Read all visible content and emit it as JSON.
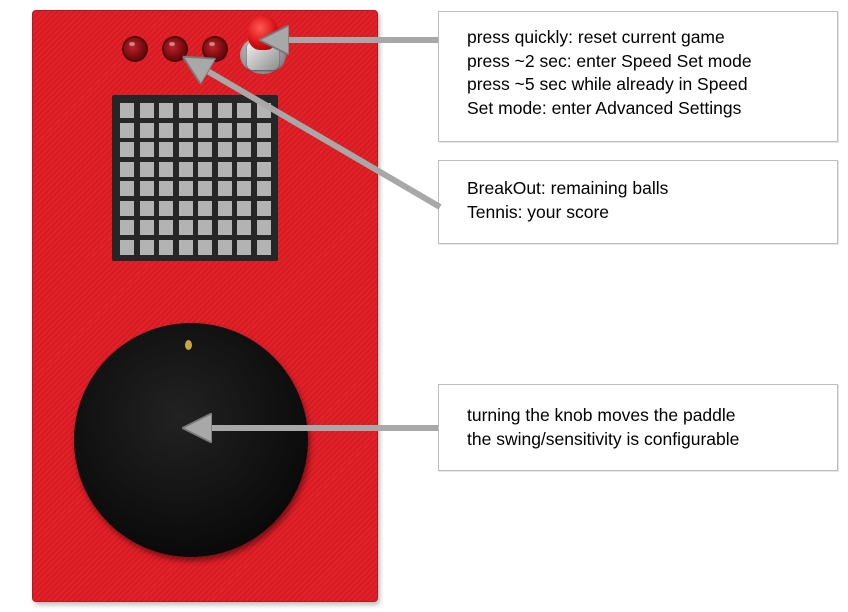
{
  "callouts": {
    "reset_button": {
      "lines": [
        "press quickly: reset current game",
        "press ~2 sec: enter Speed Set mode",
        "press ~5 sec while already in Speed",
        "Set mode: enter Advanced Settings"
      ]
    },
    "leds": {
      "lines": [
        "BreakOut: remaining balls",
        "Tennis: your score"
      ]
    },
    "knob": {
      "lines": [
        "turning the knob moves the paddle",
        "the swing/sensitivity is configurable"
      ]
    }
  },
  "device": {
    "body_color": "#e01a23",
    "led_count": 3,
    "matrix_rows": 8,
    "matrix_cols": 8,
    "arrow_color": "#a8a8a8"
  }
}
